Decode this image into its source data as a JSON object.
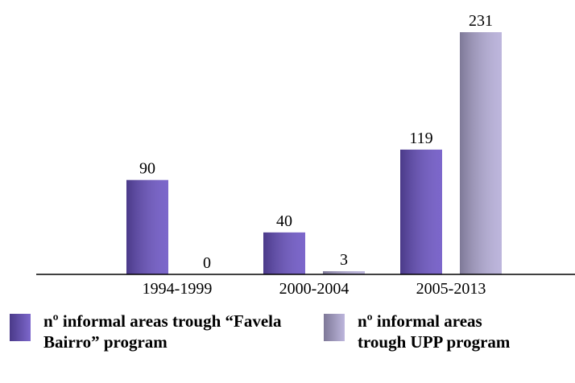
{
  "chart_data": {
    "type": "bar",
    "categories": [
      "1994-1999",
      "2000-2004",
      "2005-2013"
    ],
    "series": [
      {
        "name": "nº informal areas trough “Favela Bairro” program",
        "color": "#6a52c4",
        "values": [
          90,
          40,
          119
        ]
      },
      {
        "name": "nº informal areas trough UPP program",
        "color": "#b4acd8",
        "values": [
          0,
          3,
          231
        ]
      }
    ],
    "ylim": [
      0,
      231
    ]
  }
}
